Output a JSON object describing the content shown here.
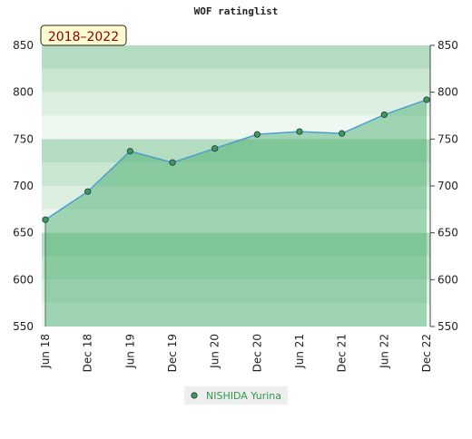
{
  "chart_data": {
    "type": "area",
    "title": "WOF ratinglist",
    "annotation": "2018–2022",
    "categories": [
      "Jun 18",
      "Dec 18",
      "Jun 19",
      "Dec 19",
      "Jun 20",
      "Dec 20",
      "Jun 21",
      "Dec 21",
      "Jun 22",
      "Dec 22"
    ],
    "series": [
      {
        "name": "NISHIDA Yurina",
        "color": "#4a9fd0",
        "marker_color": "#3f9a5a",
        "values": [
          664,
          694,
          737,
          725,
          740,
          755,
          758,
          756,
          776,
          792
        ]
      }
    ],
    "ylim": [
      550,
      850
    ],
    "yticks": [
      550,
      600,
      650,
      700,
      750,
      800,
      850
    ],
    "legend": "bottom"
  }
}
